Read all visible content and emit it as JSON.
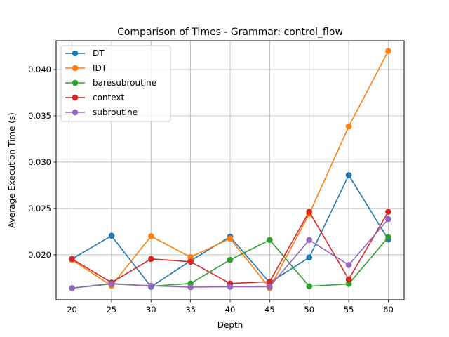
{
  "chart_data": {
    "type": "line",
    "title": "Comparison of Times - Grammar: control_flow",
    "xlabel": "Depth",
    "ylabel": "Average Execution Time (s)",
    "x": [
      20,
      25,
      30,
      35,
      40,
      45,
      50,
      55,
      60
    ],
    "xlim": [
      18.0,
      62.0
    ],
    "ylim": [
      0.01514,
      0.04311
    ],
    "x_ticks": [
      "20",
      "25",
      "30",
      "35",
      "40",
      "45",
      "50",
      "55",
      "60"
    ],
    "y_ticks": [
      0.02,
      0.025,
      0.03,
      0.035,
      0.04
    ],
    "y_tick_labels": [
      "0.020",
      "0.025",
      "0.030",
      "0.035",
      "0.040"
    ],
    "grid": true,
    "legend_placement": "upper-left",
    "series": [
      {
        "name": "DT",
        "color": "#1f77b4",
        "values": [
          0.01955,
          0.02205,
          0.01655,
          0.01935,
          0.02195,
          0.017,
          0.0197,
          0.0286,
          0.02165
        ]
      },
      {
        "name": "IDT",
        "color": "#ff7f0e",
        "values": [
          0.01945,
          0.01665,
          0.022,
          0.01975,
          0.02175,
          0.0164,
          0.0244,
          0.03385,
          0.042
        ]
      },
      {
        "name": "baresubroutine",
        "color": "#2ca02c",
        "values": [
          0.0164,
          0.0169,
          0.0166,
          0.0169,
          0.01945,
          0.0216,
          0.0166,
          0.01685,
          0.0219
        ]
      },
      {
        "name": "context",
        "color": "#d62728",
        "values": [
          0.01955,
          0.017,
          0.01955,
          0.01925,
          0.0169,
          0.0171,
          0.02465,
          0.01735,
          0.02465
        ]
      },
      {
        "name": "subroutine",
        "color": "#9467bd",
        "values": [
          0.0164,
          0.01685,
          0.01665,
          0.0165,
          0.01655,
          0.01655,
          0.0216,
          0.0189,
          0.02385
        ]
      }
    ]
  }
}
